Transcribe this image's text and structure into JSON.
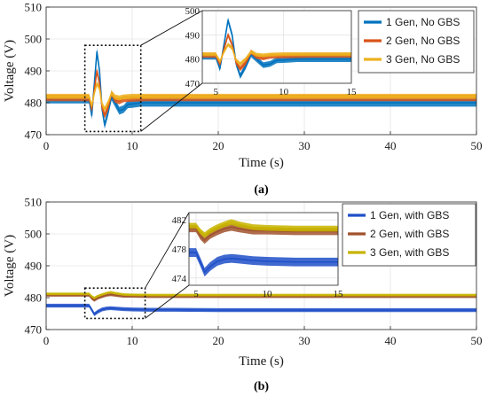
{
  "chart_data": [
    {
      "type": "line",
      "panel_label": "(a)",
      "xlabel": "Time (s)",
      "ylabel": "Voltage (V)",
      "xlim": [
        0,
        50
      ],
      "ylim": [
        470,
        510
      ],
      "xticks": [
        0,
        10,
        20,
        30,
        40,
        50
      ],
      "yticks": [
        470,
        480,
        490,
        500,
        510
      ],
      "grid": true,
      "legend_position": "top-right",
      "series": [
        {
          "name": "1 Gen, No GBS",
          "color": "#0072bd",
          "band": 1.2,
          "x": [
            0,
            5,
            5.3,
            5.6,
            5.9,
            6.2,
            6.5,
            6.8,
            7.2,
            7.6,
            8.0,
            8.5,
            9,
            9.5,
            10,
            11,
            12,
            15,
            20,
            30,
            40,
            50
          ],
          "y": [
            481,
            481,
            476,
            486,
            496,
            490,
            478,
            473,
            477,
            482,
            480,
            477.5,
            478,
            479.5,
            479.6,
            480,
            480,
            480,
            480,
            480,
            480,
            480
          ]
        },
        {
          "name": "2 Gen, No GBS",
          "color": "#d95319",
          "band": 1.0,
          "x": [
            0,
            5,
            5.3,
            5.6,
            5.9,
            6.2,
            6.5,
            6.8,
            7.2,
            7.6,
            8.0,
            8.5,
            9,
            10,
            12,
            15,
            20,
            30,
            40,
            50
          ],
          "y": [
            481.5,
            481.5,
            478,
            484,
            490,
            486,
            478.5,
            476,
            478.5,
            483,
            481,
            480.5,
            481.2,
            481.3,
            481.5,
            481.5,
            481.5,
            481.5,
            481.5,
            481.5
          ]
        },
        {
          "name": "3 Gen, No GBS",
          "color": "#edb120",
          "band": 0.8,
          "x": [
            0,
            5,
            5.3,
            5.6,
            5.9,
            6.2,
            6.5,
            6.8,
            7.2,
            7.6,
            8.0,
            8.5,
            9,
            10,
            12,
            15,
            20,
            30,
            40,
            50
          ],
          "y": [
            482,
            482,
            479,
            483,
            486,
            484.5,
            479.5,
            478,
            480,
            483,
            481.8,
            481.5,
            481.8,
            482,
            482,
            482,
            482,
            482,
            482,
            482
          ]
        }
      ],
      "inset": {
        "xlim": [
          4,
          15
        ],
        "ylim": [
          470,
          500
        ],
        "xticks": [
          5,
          10,
          15
        ],
        "yticks": [
          470,
          480,
          490,
          500
        ],
        "zoom_region": {
          "x": [
            4.5,
            11
          ],
          "y": [
            471,
            498
          ]
        }
      }
    },
    {
      "type": "line",
      "panel_label": "(b)",
      "xlabel": "Time (s)",
      "ylabel": "Voltage (V)",
      "xlim": [
        0,
        50
      ],
      "ylim": [
        470,
        510
      ],
      "xticks": [
        0,
        10,
        20,
        30,
        40,
        50
      ],
      "yticks": [
        470,
        480,
        490,
        500,
        510
      ],
      "grid": true,
      "legend_position": "top-right",
      "series": [
        {
          "name": "1 Gen, with GBS",
          "color": "#1f4fc8",
          "band": 0.6,
          "x": [
            0,
            5,
            5.3,
            5.6,
            6,
            6.5,
            7,
            7.5,
            8,
            9,
            10,
            12,
            15,
            20,
            30,
            40,
            50
          ],
          "y": [
            477.5,
            477.5,
            476.2,
            474.8,
            475.6,
            476.3,
            476.6,
            476.7,
            476.6,
            476.4,
            476.3,
            476.2,
            476.2,
            476.1,
            476.1,
            476.1,
            476.1
          ]
        },
        {
          "name": "2 Gen, with GBS",
          "color": "#a0522d",
          "band": 0.5,
          "x": [
            0,
            5,
            5.3,
            5.6,
            6,
            6.5,
            7,
            7.5,
            8,
            9,
            10,
            12,
            15,
            20,
            30,
            40,
            50
          ],
          "y": [
            480.8,
            480.8,
            479.8,
            479.2,
            479.9,
            480.4,
            480.8,
            481.0,
            480.8,
            480.5,
            480.5,
            480.4,
            480.4,
            480.4,
            480.4,
            480.4,
            480.4
          ]
        },
        {
          "name": "3 Gen, with GBS",
          "color": "#c8b400",
          "band": 0.4,
          "x": [
            0,
            5,
            5.3,
            5.6,
            6,
            6.5,
            7,
            7.5,
            8,
            9,
            10,
            12,
            15,
            20,
            30,
            40,
            50
          ],
          "y": [
            481.2,
            481.2,
            480.4,
            479.9,
            480.5,
            481.0,
            481.4,
            481.7,
            481.4,
            481.0,
            480.9,
            480.8,
            480.8,
            480.8,
            480.8,
            480.8,
            480.8
          ]
        }
      ],
      "inset": {
        "xlim": [
          4.5,
          15
        ],
        "ylim": [
          473,
          483
        ],
        "xticks": [
          5,
          10,
          15
        ],
        "yticks": [
          474,
          478,
          482
        ],
        "zoom_region": {
          "x": [
            4.5,
            11.5
          ],
          "y": [
            473.5,
            483
          ]
        }
      }
    }
  ]
}
